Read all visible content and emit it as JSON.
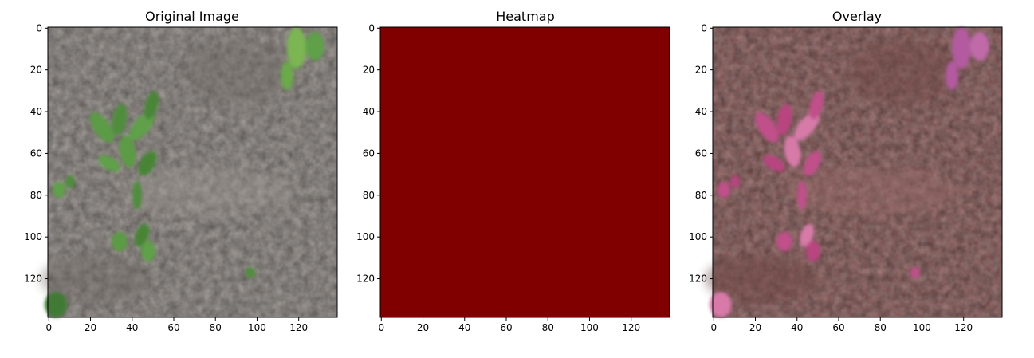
{
  "chart_data": [
    {
      "type": "image",
      "title": "Original Image",
      "image_size": [
        139,
        139
      ],
      "xlim": [
        0,
        139
      ],
      "ylim": [
        139,
        0
      ],
      "xticks": [
        0,
        20,
        40,
        60,
        80,
        100,
        120
      ],
      "yticks": [
        0,
        20,
        40,
        60,
        80,
        100,
        120
      ],
      "content": "soil with green weed seedlings",
      "colors": {
        "soil": "#8f8883",
        "soil_dark": "#6e6863",
        "leaf": "#5b9b45",
        "leaf_dark": "#3f7a35"
      }
    },
    {
      "type": "heatmap",
      "title": "Heatmap",
      "image_size": [
        139,
        139
      ],
      "xlim": [
        0,
        139
      ],
      "ylim": [
        139,
        0
      ],
      "xticks": [
        0,
        20,
        40,
        60,
        80,
        100,
        120
      ],
      "yticks": [
        0,
        20,
        40,
        60,
        80,
        100,
        120
      ],
      "uniform_color": "#800000"
    },
    {
      "type": "image",
      "title": "Overlay",
      "image_size": [
        139,
        139
      ],
      "xlim": [
        0,
        139
      ],
      "ylim": [
        139,
        0
      ],
      "xticks": [
        0,
        20,
        40,
        60,
        80,
        100,
        120
      ],
      "yticks": [
        0,
        20,
        40,
        60,
        80,
        100,
        120
      ],
      "content": "original image blended with heatmap",
      "colors": {
        "base": "#8a5a58",
        "base_dark": "#6e4442",
        "leaf": "#c0508a",
        "leaf_light": "#d77aa8"
      }
    }
  ]
}
